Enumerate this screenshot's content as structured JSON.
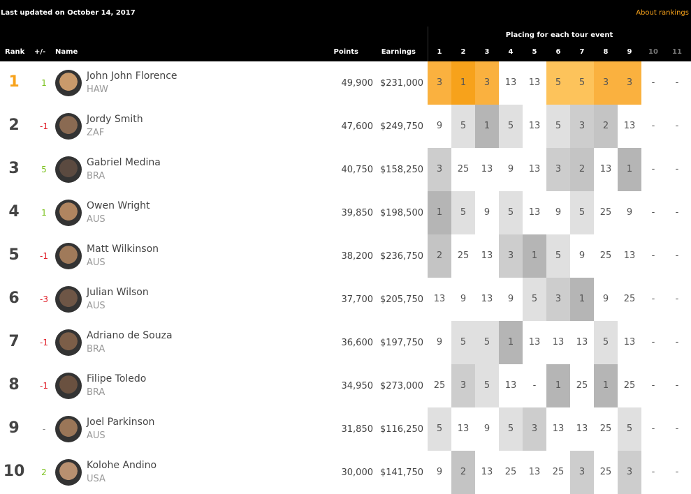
{
  "header": {
    "updated": "Last updated on October 14, 2017",
    "about_link": "About rankings"
  },
  "table": {
    "group_title": "Placing for each tour event",
    "columns": {
      "rank": "Rank",
      "change": "+/-",
      "name": "Name",
      "points": "Points",
      "earnings": "Earnings"
    },
    "events": [
      "1",
      "2",
      "3",
      "4",
      "5",
      "6",
      "7",
      "8",
      "9",
      "10",
      "11"
    ],
    "placing_shades": {
      "1": "#b5b5b5",
      "2": "#c4c4c4",
      "3": "#cdcdcd",
      "5": "#e0e0e0"
    },
    "leader_placing_shades": {
      "1": "#f7a21b",
      "3": "#fab13f",
      "5": "#fdc35b"
    },
    "leader_rank_color": "#f7a21b",
    "rows": [
      {
        "rank": "1",
        "change": "1",
        "name": "John John Florence",
        "country": "HAW",
        "points": "49,900",
        "earnings": "$231,000",
        "leader": true,
        "placings": [
          "3",
          "1",
          "3",
          "13",
          "13",
          "5",
          "5",
          "3",
          "3",
          "-",
          "-"
        ]
      },
      {
        "rank": "2",
        "change": "-1",
        "name": "Jordy Smith",
        "country": "ZAF",
        "points": "47,600",
        "earnings": "$249,750",
        "placings": [
          "9",
          "5",
          "1",
          "5",
          "13",
          "5",
          "3",
          "2",
          "13",
          "-",
          "-"
        ]
      },
      {
        "rank": "3",
        "change": "5",
        "name": "Gabriel Medina",
        "country": "BRA",
        "points": "40,750",
        "earnings": "$158,250",
        "placings": [
          "3",
          "25",
          "13",
          "9",
          "13",
          "3",
          "2",
          "13",
          "1",
          "-",
          "-"
        ]
      },
      {
        "rank": "4",
        "change": "1",
        "name": "Owen Wright",
        "country": "AUS",
        "points": "39,850",
        "earnings": "$198,500",
        "placings": [
          "1",
          "5",
          "9",
          "5",
          "13",
          "9",
          "5",
          "25",
          "9",
          "-",
          "-"
        ]
      },
      {
        "rank": "5",
        "change": "-1",
        "name": "Matt Wilkinson",
        "country": "AUS",
        "points": "38,200",
        "earnings": "$236,750",
        "placings": [
          "2",
          "25",
          "13",
          "3",
          "1",
          "5",
          "9",
          "25",
          "13",
          "-",
          "-"
        ]
      },
      {
        "rank": "6",
        "change": "-3",
        "name": "Julian Wilson",
        "country": "AUS",
        "points": "37,700",
        "earnings": "$205,750",
        "placings": [
          "13",
          "9",
          "13",
          "9",
          "5",
          "3",
          "1",
          "9",
          "25",
          "-",
          "-"
        ]
      },
      {
        "rank": "7",
        "change": "-1",
        "name": "Adriano de Souza",
        "country": "BRA",
        "points": "36,600",
        "earnings": "$197,750",
        "placings": [
          "9",
          "5",
          "5",
          "1",
          "13",
          "13",
          "13",
          "5",
          "13",
          "-",
          "-"
        ]
      },
      {
        "rank": "8",
        "change": "-1",
        "name": "Filipe Toledo",
        "country": "BRA",
        "points": "34,950",
        "earnings": "$273,000",
        "placings": [
          "25",
          "3",
          "5",
          "13",
          "-",
          "1",
          "25",
          "1",
          "25",
          "-",
          "-"
        ]
      },
      {
        "rank": "9",
        "change": "-",
        "name": "Joel Parkinson",
        "country": "AUS",
        "points": "31,850",
        "earnings": "$116,250",
        "placings": [
          "5",
          "13",
          "9",
          "5",
          "3",
          "13",
          "13",
          "25",
          "5",
          "-",
          "-"
        ]
      },
      {
        "rank": "10",
        "change": "2",
        "name": "Kolohe Andino",
        "country": "USA",
        "points": "30,000",
        "earnings": "$141,750",
        "placings": [
          "9",
          "2",
          "13",
          "25",
          "13",
          "25",
          "3",
          "25",
          "3",
          "-",
          "-"
        ]
      }
    ]
  }
}
